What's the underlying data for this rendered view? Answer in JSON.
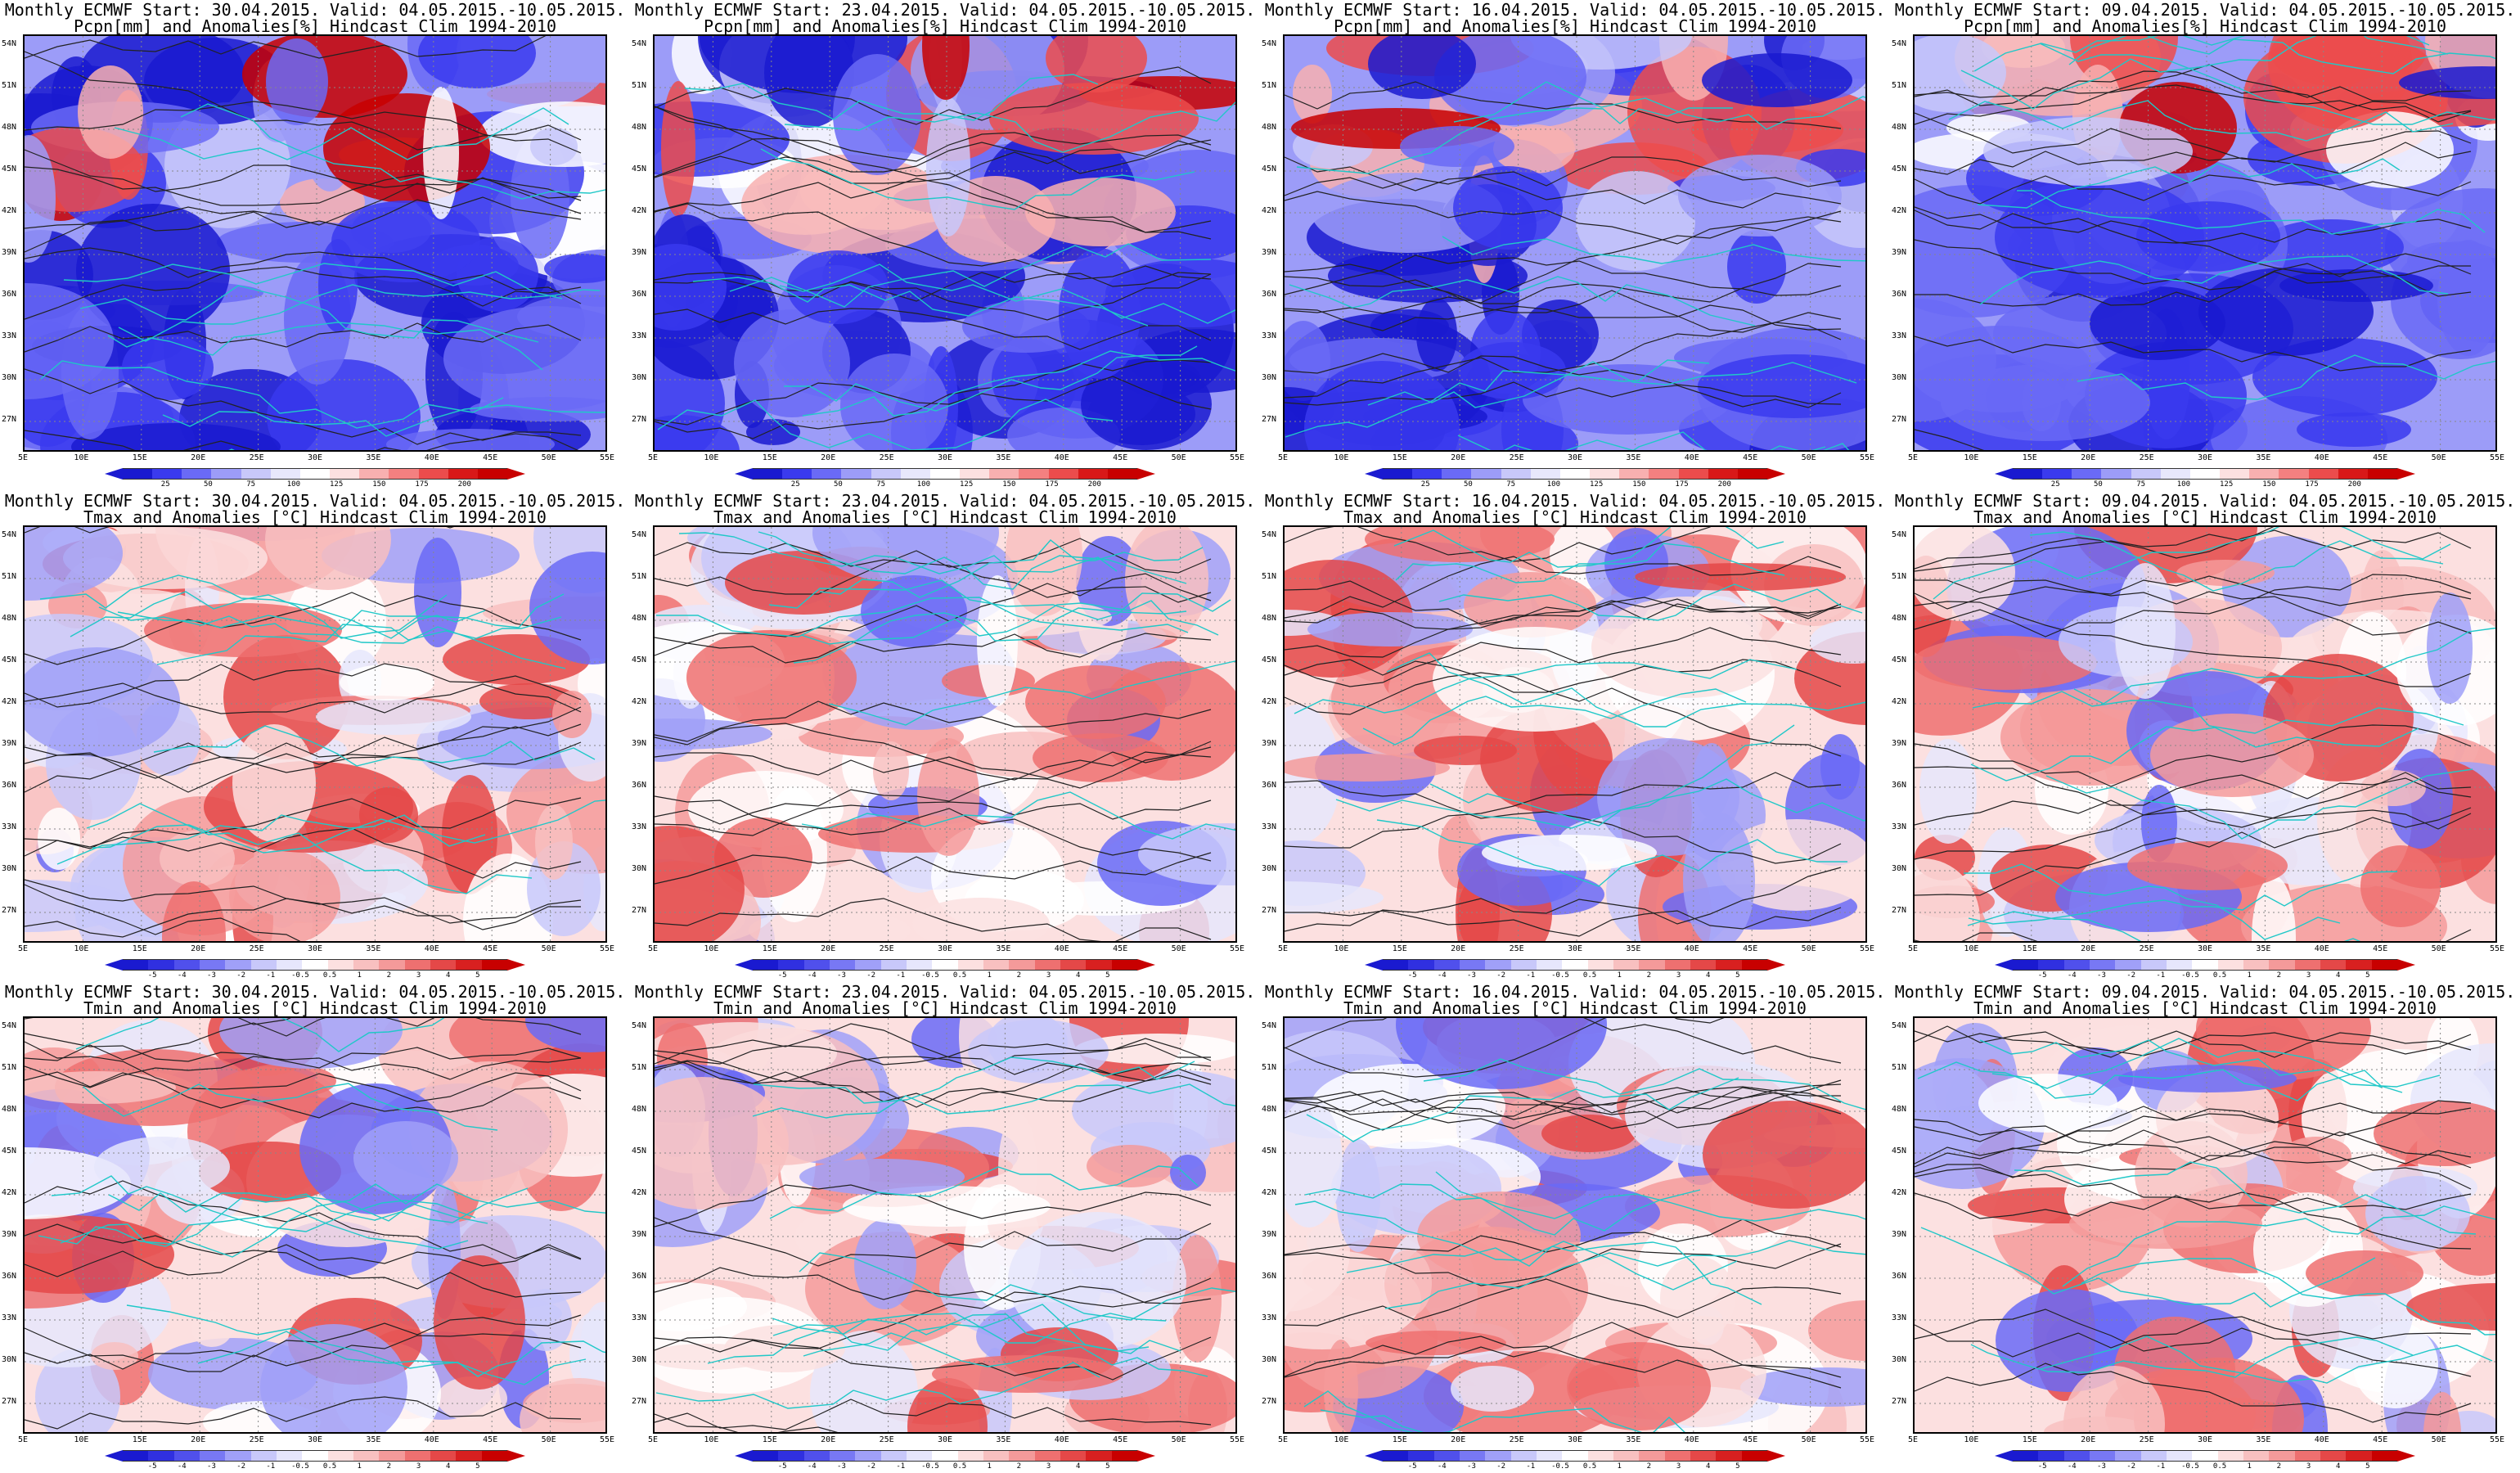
{
  "panels": [
    {
      "t1": "Monthly ECMWF Start: 30.04.2015. Valid: 04.05.2015.-10.05.2015.",
      "t2": "Pcpn[mm] and Anomalies[%] Hindcast Clim 1994-2010",
      "type": "pcpn"
    },
    {
      "t1": "Monthly ECMWF Start: 23.04.2015. Valid: 04.05.2015.-10.05.2015.",
      "t2": "Pcpn[mm] and Anomalies[%] Hindcast Clim 1994-2010",
      "type": "pcpn"
    },
    {
      "t1": "Monthly ECMWF Start: 16.04.2015. Valid: 04.05.2015.-10.05.2015.",
      "t2": "Pcpn[mm] and Anomalies[%] Hindcast Clim 1994-2010",
      "type": "pcpn"
    },
    {
      "t1": "Monthly ECMWF Start: 09.04.2015. Valid: 04.05.2015.-10.05.2015.",
      "t2": "Pcpn[mm] and Anomalies[%] Hindcast Clim 1994-2010",
      "type": "pcpn"
    },
    {
      "t1": "Monthly ECMWF Start: 30.04.2015. Valid: 04.05.2015.-10.05.2015.",
      "t2": "Tmax and Anomalies [°C] Hindcast Clim 1994-2010",
      "type": "temp"
    },
    {
      "t1": "Monthly ECMWF Start: 23.04.2015. Valid: 04.05.2015.-10.05.2015.",
      "t2": "Tmax and Anomalies [°C] Hindcast Clim 1994-2010",
      "type": "temp"
    },
    {
      "t1": "Monthly ECMWF Start: 16.04.2015. Valid: 04.05.2015.-10.05.2015.",
      "t2": "Tmax and Anomalies [°C] Hindcast Clim 1994-2010",
      "type": "temp"
    },
    {
      "t1": "Monthly ECMWF Start: 09.04.2015. Valid: 04.05.2015.-10.05.2015.",
      "t2": "Tmax and Anomalies [°C] Hindcast Clim 1994-2010",
      "type": "temp"
    },
    {
      "t1": "Monthly ECMWF Start: 30.04.2015. Valid: 04.05.2015.-10.05.2015.",
      "t2": "Tmin and Anomalies [°C] Hindcast Clim 1994-2010",
      "type": "temp"
    },
    {
      "t1": "Monthly ECMWF Start: 23.04.2015. Valid: 04.05.2015.-10.05.2015.",
      "t2": "Tmin and Anomalies [°C] Hindcast Clim 1994-2010",
      "type": "temp"
    },
    {
      "t1": "Monthly ECMWF Start: 16.04.2015. Valid: 04.05.2015.-10.05.2015.",
      "t2": "Tmin and Anomalies [°C] Hindcast Clim 1994-2010",
      "type": "temp"
    },
    {
      "t1": "Monthly ECMWF Start: 09.04.2015. Valid: 04.05.2015.-10.05.2015.",
      "t2": "Tmin and Anomalies [°C] Hindcast Clim 1994-2010",
      "type": "temp"
    }
  ],
  "lat_labels": [
    "54N",
    "51N",
    "48N",
    "45N",
    "42N",
    "39N",
    "36N",
    "33N",
    "30N",
    "27N"
  ],
  "lon_labels": [
    "5E",
    "10E",
    "15E",
    "20E",
    "25E",
    "30E",
    "35E",
    "40E",
    "45E",
    "50E",
    "55E"
  ],
  "colorbars": {
    "pcpn": {
      "ticks": [
        "25",
        "50",
        "75",
        "100",
        "125",
        "150",
        "175",
        "200"
      ],
      "colors": [
        "#1a1ad0",
        "#3a3aee",
        "#6a6af6",
        "#9c9cf8",
        "#c8c8fa",
        "#e8e8fc",
        "#ffffff",
        "#fce0e0",
        "#f8b0b0",
        "#f48080",
        "#ec4c4c",
        "#d81818",
        "#c80000"
      ]
    },
    "temp": {
      "ticks": [
        "-5",
        "-4",
        "-3",
        "-2",
        "-1",
        "-0.5",
        "0.5",
        "1",
        "2",
        "3",
        "4",
        "5"
      ],
      "colors": [
        "#1a1ad0",
        "#3030e0",
        "#5050ec",
        "#7878f4",
        "#a0a0f8",
        "#c8c8fa",
        "#e6e6fc",
        "#ffffff",
        "#fce0e0",
        "#f8c0c0",
        "#f49a9a",
        "#ee7070",
        "#e44848",
        "#d82020",
        "#c80000"
      ]
    }
  }
}
